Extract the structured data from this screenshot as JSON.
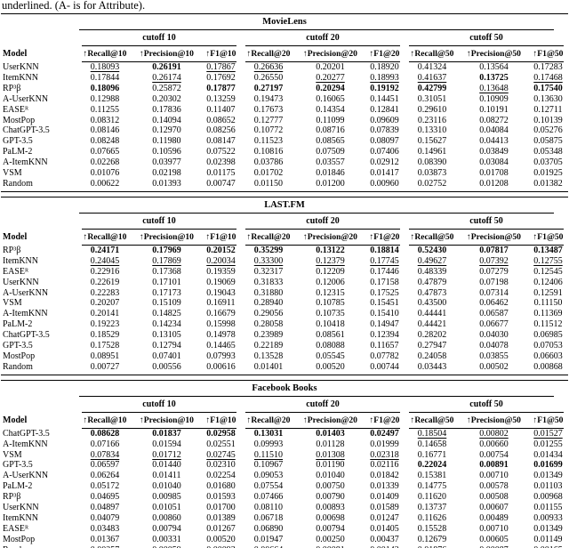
{
  "caption": "underlined. (A- is for Attribute).",
  "columns": {
    "model": "Model",
    "groups": [
      {
        "label": "cutoff 10",
        "metrics": [
          "↑Recall@10",
          "↑Precision@10",
          "↑F1@10"
        ]
      },
      {
        "label": "cutoff 20",
        "metrics": [
          "↑Recall@20",
          "↑Precision@20",
          "↑F1@20"
        ]
      },
      {
        "label": "cutoff 50",
        "metrics": [
          "↑Recall@50",
          "↑Precision@50",
          "↑F1@50"
        ]
      }
    ]
  },
  "tables": [
    {
      "title": "MovieLens",
      "rows": [
        {
          "model": "UserKNN",
          "values": [
            "0.18093",
            "0.26191",
            "0.17867",
            "0.26636",
            "0.20201",
            "0.18920",
            "0.41324",
            "0.13564",
            "0.17283"
          ],
          "styles": [
            "u",
            "b",
            "u",
            "u",
            "",
            "",
            "",
            "",
            ""
          ]
        },
        {
          "model": "ItemKNN",
          "values": [
            "0.17844",
            "0.26174",
            "0.17692",
            "0.26550",
            "0.20277",
            "0.18993",
            "0.41637",
            "0.13725",
            "0.17468"
          ],
          "styles": [
            "",
            "u",
            "",
            "",
            "u",
            "u",
            "u",
            "b",
            "u"
          ]
        },
        {
          "model": "RP³β",
          "values": [
            "0.18096",
            "0.25872",
            "0.17877",
            "0.27197",
            "0.20294",
            "0.19192",
            "0.42799",
            "0.13648",
            "0.17540"
          ],
          "styles": [
            "b",
            "",
            "b",
            "b",
            "b",
            "b",
            "b",
            "u",
            "b"
          ]
        },
        {
          "model": "A-UserKNN",
          "values": [
            "0.12988",
            "0.20302",
            "0.13259",
            "0.19473",
            "0.16065",
            "0.14451",
            "0.31051",
            "0.10909",
            "0.13630"
          ],
          "styles": [
            "",
            "",
            "",
            "",
            "",
            "",
            "",
            "",
            ""
          ]
        },
        {
          "model": "EASEᴿ",
          "values": [
            "0.11255",
            "0.17836",
            "0.11407",
            "0.17673",
            "0.14354",
            "0.12841",
            "0.29610",
            "0.10191",
            "0.12711"
          ],
          "styles": [
            "",
            "",
            "",
            "",
            "",
            "",
            "",
            "",
            ""
          ]
        },
        {
          "model": "MostPop",
          "values": [
            "0.08312",
            "0.14094",
            "0.08652",
            "0.12777",
            "0.11099",
            "0.09609",
            "0.23116",
            "0.08272",
            "0.10139"
          ],
          "styles": [
            "",
            "",
            "",
            "",
            "",
            "",
            "",
            "",
            ""
          ]
        },
        {
          "model": "ChatGPT-3.5",
          "values": [
            "0.08146",
            "0.12970",
            "0.08256",
            "0.10772",
            "0.08716",
            "0.07839",
            "0.13310",
            "0.04084",
            "0.05276"
          ],
          "styles": [
            "",
            "",
            "",
            "",
            "",
            "",
            "",
            "",
            ""
          ]
        },
        {
          "model": "GPT-3.5",
          "values": [
            "0.08248",
            "0.11980",
            "0.08147",
            "0.11523",
            "0.08565",
            "0.08097",
            "0.15627",
            "0.04413",
            "0.05875"
          ],
          "styles": [
            "",
            "",
            "",
            "",
            "",
            "",
            "",
            "",
            ""
          ]
        },
        {
          "model": "PaLM-2",
          "values": [
            "0.07665",
            "0.10596",
            "0.07522",
            "0.10816",
            "0.07509",
            "0.07406",
            "0.14961",
            "0.03849",
            "0.05348"
          ],
          "styles": [
            "",
            "",
            "",
            "",
            "",
            "",
            "",
            "",
            ""
          ]
        },
        {
          "model": "A-ItemKNN",
          "values": [
            "0.02268",
            "0.03977",
            "0.02398",
            "0.03786",
            "0.03557",
            "0.02912",
            "0.08390",
            "0.03084",
            "0.03705"
          ],
          "styles": [
            "",
            "",
            "",
            "",
            "",
            "",
            "",
            "",
            ""
          ]
        },
        {
          "model": "VSM",
          "values": [
            "0.01076",
            "0.02198",
            "0.01175",
            "0.01702",
            "0.01846",
            "0.01417",
            "0.03873",
            "0.01708",
            "0.01925"
          ],
          "styles": [
            "",
            "",
            "",
            "",
            "",
            "",
            "",
            "",
            ""
          ]
        },
        {
          "model": "Random",
          "values": [
            "0.00622",
            "0.01393",
            "0.00747",
            "0.01150",
            "0.01200",
            "0.00960",
            "0.02752",
            "0.01208",
            "0.01382"
          ],
          "styles": [
            "",
            "",
            "",
            "",
            "",
            "",
            "",
            "",
            ""
          ]
        }
      ]
    },
    {
      "title": "LAST.FM",
      "rows": [
        {
          "model": "RP³β",
          "values": [
            "0.24171",
            "0.17969",
            "0.20152",
            "0.35299",
            "0.13122",
            "0.18814",
            "0.52430",
            "0.07817",
            "0.13487"
          ],
          "styles": [
            "b",
            "b",
            "b",
            "b",
            "b",
            "b",
            "b",
            "b",
            "b"
          ]
        },
        {
          "model": "ItemKNN",
          "values": [
            "0.24045",
            "0.17869",
            "0.20034",
            "0.33300",
            "0.12379",
            "0.17745",
            "0.49627",
            "0.07392",
            "0.12755"
          ],
          "styles": [
            "u",
            "u",
            "u",
            "u",
            "u",
            "u",
            "u",
            "u",
            "u"
          ]
        },
        {
          "model": "EASEᴿ",
          "values": [
            "0.22916",
            "0.17368",
            "0.19359",
            "0.32317",
            "0.12209",
            "0.17446",
            "0.48339",
            "0.07279",
            "0.12545"
          ],
          "styles": [
            "",
            "",
            "",
            "",
            "",
            "",
            "",
            "",
            ""
          ]
        },
        {
          "model": "UserKNN",
          "values": [
            "0.22619",
            "0.17101",
            "0.19069",
            "0.31833",
            "0.12006",
            "0.17158",
            "0.47879",
            "0.07198",
            "0.12406"
          ],
          "styles": [
            "",
            "",
            "",
            "",
            "",
            "",
            "",
            "",
            ""
          ]
        },
        {
          "model": "A-UserKNN",
          "values": [
            "0.22283",
            "0.17173",
            "0.19043",
            "0.31880",
            "0.12315",
            "0.17525",
            "0.47873",
            "0.07314",
            "0.12591"
          ],
          "styles": [
            "",
            "",
            "",
            "",
            "",
            "",
            "",
            "",
            ""
          ]
        },
        {
          "model": "VSM",
          "values": [
            "0.20207",
            "0.15109",
            "0.16911",
            "0.28940",
            "0.10785",
            "0.15451",
            "0.43500",
            "0.06462",
            "0.11150"
          ],
          "styles": [
            "",
            "",
            "",
            "",
            "",
            "",
            "",
            "",
            ""
          ]
        },
        {
          "model": "A-ItemKNN",
          "values": [
            "0.20141",
            "0.14825",
            "0.16679",
            "0.29056",
            "0.10735",
            "0.15410",
            "0.44441",
            "0.06587",
            "0.11369"
          ],
          "styles": [
            "",
            "",
            "",
            "",
            "",
            "",
            "",
            "",
            ""
          ]
        },
        {
          "model": "PaLM-2",
          "values": [
            "0.19223",
            "0.14234",
            "0.15998",
            "0.28058",
            "0.10418",
            "0.14947",
            "0.44421",
            "0.06677",
            "0.11512"
          ],
          "styles": [
            "",
            "",
            "",
            "",
            "",
            "",
            "",
            "",
            ""
          ]
        },
        {
          "model": "ChatGPT-3.5",
          "values": [
            "0.18529",
            "0.13105",
            "0.14978",
            "0.23989",
            "0.08561",
            "0.12394",
            "0.28202",
            "0.04030",
            "0.06985"
          ],
          "styles": [
            "",
            "",
            "",
            "",
            "",
            "",
            "",
            "",
            ""
          ]
        },
        {
          "model": "GPT-3.5",
          "values": [
            "0.17528",
            "0.12794",
            "0.14465",
            "0.22189",
            "0.08088",
            "0.11657",
            "0.27947",
            "0.04078",
            "0.07053"
          ],
          "styles": [
            "",
            "",
            "",
            "",
            "",
            "",
            "",
            "",
            ""
          ]
        },
        {
          "model": "MostPop",
          "values": [
            "0.08951",
            "0.07401",
            "0.07993",
            "0.13528",
            "0.05545",
            "0.07782",
            "0.24058",
            "0.03855",
            "0.06603"
          ],
          "styles": [
            "",
            "",
            "",
            "",
            "",
            "",
            "",
            "",
            ""
          ]
        },
        {
          "model": "Random",
          "values": [
            "0.00727",
            "0.00556",
            "0.00616",
            "0.01401",
            "0.00520",
            "0.00744",
            "0.03443",
            "0.00502",
            "0.00868"
          ],
          "styles": [
            "",
            "",
            "",
            "",
            "",
            "",
            "",
            "",
            ""
          ]
        }
      ]
    },
    {
      "title": "Facebook Books",
      "rows": [
        {
          "model": "ChatGPT-3.5",
          "values": [
            "0.08628",
            "0.01837",
            "0.02958",
            "0.13031",
            "0.01403",
            "0.02497",
            "0.18504",
            "0.00802",
            "0.01527"
          ],
          "styles": [
            "b",
            "b",
            "b",
            "b",
            "b",
            "b",
            "u",
            "u",
            "u"
          ]
        },
        {
          "model": "A-ItemKNN",
          "values": [
            "0.07166",
            "0.01594",
            "0.02551",
            "0.09993",
            "0.01128",
            "0.01999",
            "0.14658",
            "0.00660",
            "0.01255"
          ],
          "styles": [
            "",
            "",
            "",
            "",
            "",
            "",
            "",
            "",
            ""
          ]
        },
        {
          "model": "VSM",
          "values": [
            "0.07834",
            "0.01712",
            "0.02745",
            "0.11510",
            "0.01308",
            "0.02318",
            "0.16771",
            "0.00754",
            "0.01434"
          ],
          "styles": [
            "u",
            "u",
            "u",
            "u",
            "u",
            "u",
            "",
            "",
            ""
          ]
        },
        {
          "model": "GPT-3.5",
          "values": [
            "0.06597",
            "0.01440",
            "0.02310",
            "0.10967",
            "0.01190",
            "0.02116",
            "0.22024",
            "0.00891",
            "0.01699"
          ],
          "styles": [
            "",
            "",
            "",
            "",
            "",
            "",
            "b",
            "b",
            "b"
          ]
        },
        {
          "model": "A-UserKNN",
          "values": [
            "0.06264",
            "0.01411",
            "0.02254",
            "0.09053",
            "0.01040",
            "0.01842",
            "0.15381",
            "0.00710",
            "0.01349"
          ],
          "styles": [
            "",
            "",
            "",
            "",
            "",
            "",
            "",
            "",
            ""
          ]
        },
        {
          "model": "PaLM-2",
          "values": [
            "0.05172",
            "0.01040",
            "0.01680",
            "0.07554",
            "0.00750",
            "0.01339",
            "0.14775",
            "0.00578",
            "0.01103"
          ],
          "styles": [
            "",
            "",
            "",
            "",
            "",
            "",
            "",
            "",
            ""
          ]
        },
        {
          "model": "RP³β",
          "values": [
            "0.04695",
            "0.00985",
            "0.01593",
            "0.07466",
            "0.00790",
            "0.01409",
            "0.11620",
            "0.00508",
            "0.00968"
          ],
          "styles": [
            "",
            "",
            "",
            "",
            "",
            "",
            "",
            "",
            ""
          ]
        },
        {
          "model": "UserKNN",
          "values": [
            "0.04897",
            "0.01051",
            "0.01700",
            "0.08110",
            "0.00893",
            "0.01589",
            "0.13737",
            "0.00607",
            "0.01155"
          ],
          "styles": [
            "",
            "",
            "",
            "",
            "",
            "",
            "",
            "",
            ""
          ]
        },
        {
          "model": "ItemKNN",
          "values": [
            "0.04079",
            "0.00860",
            "0.01389",
            "0.06718",
            "0.00698",
            "0.01247",
            "0.11626",
            "0.00489",
            "0.00933"
          ],
          "styles": [
            "",
            "",
            "",
            "",
            "",
            "",
            "",
            "",
            ""
          ]
        },
        {
          "model": "EASEᴿ",
          "values": [
            "0.03483",
            "0.00794",
            "0.01267",
            "0.06890",
            "0.00794",
            "0.01405",
            "0.15528",
            "0.00710",
            "0.01349"
          ],
          "styles": [
            "",
            "",
            "",
            "",
            "",
            "",
            "",
            "",
            ""
          ]
        },
        {
          "model": "MostPop",
          "values": [
            "0.01367",
            "0.00331",
            "0.00520",
            "0.01947",
            "0.00250",
            "0.00437",
            "0.12679",
            "0.00605",
            "0.01149"
          ],
          "styles": [
            "",
            "",
            "",
            "",
            "",
            "",
            "",
            "",
            ""
          ]
        },
        {
          "model": "Random",
          "values": [
            "0.00257",
            "0.00059",
            "0.00093",
            "0.00664",
            "0.00081",
            "0.00142",
            "0.01876",
            "0.00087",
            "0.00165"
          ],
          "styles": [
            "",
            "",
            "",
            "",
            "",
            "",
            "",
            "",
            ""
          ]
        }
      ]
    }
  ]
}
